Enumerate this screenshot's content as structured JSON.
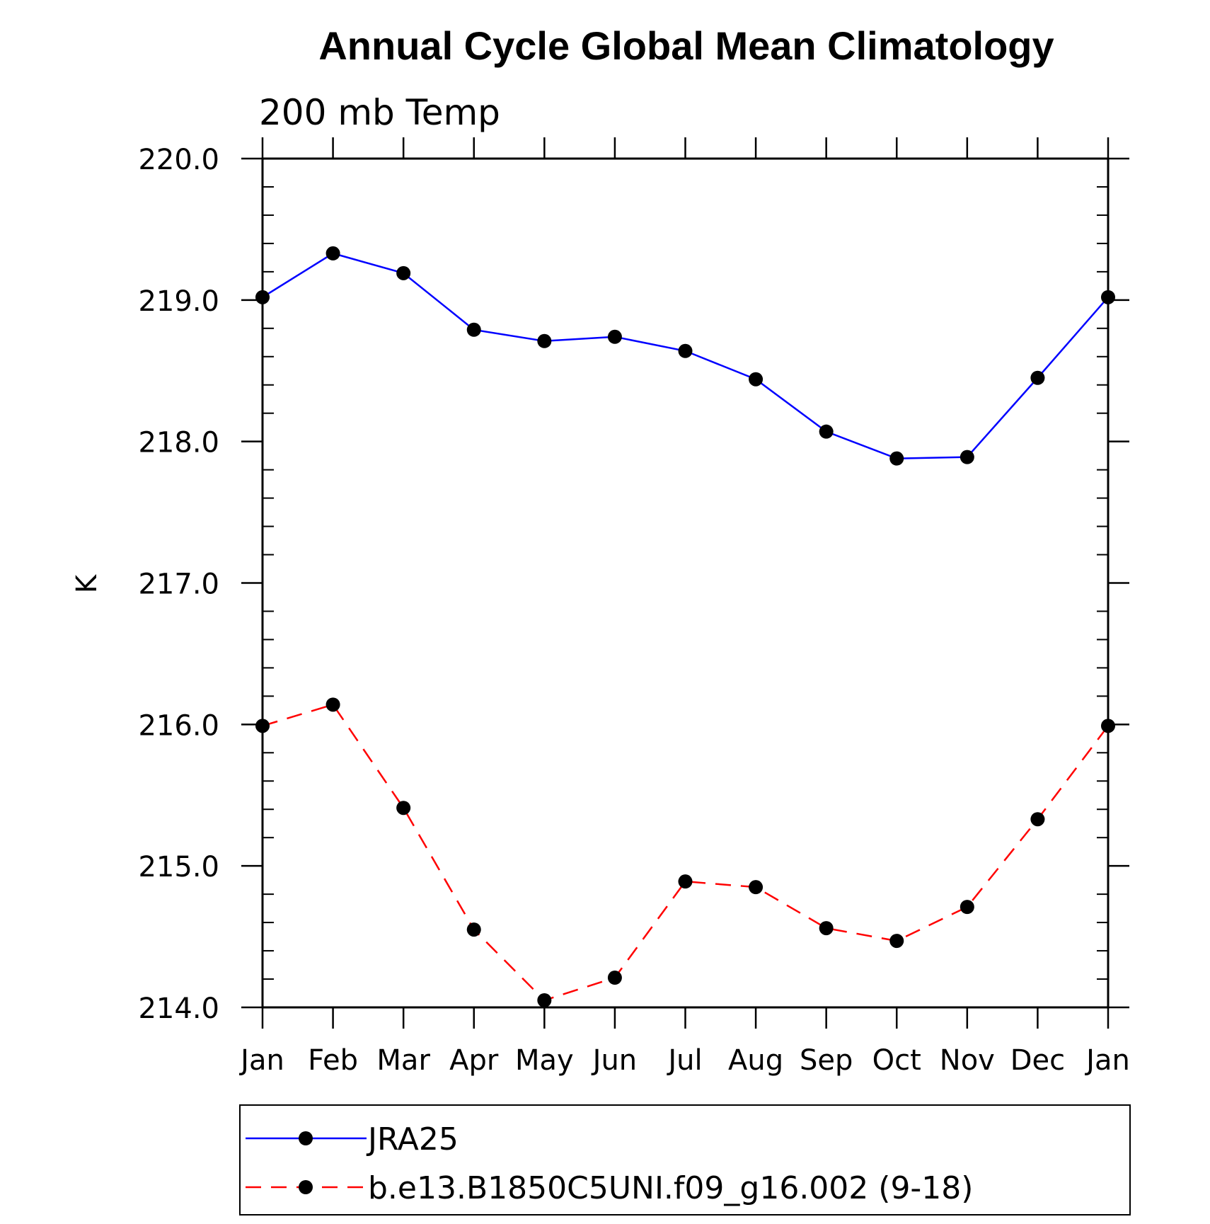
{
  "chart_data": {
    "type": "line",
    "title": "Annual Cycle Global Mean Climatology",
    "subtitle": "200 mb Temp",
    "xlabel": "",
    "ylabel": "K",
    "categories": [
      "Jan",
      "Feb",
      "Mar",
      "Apr",
      "May",
      "Jun",
      "Jul",
      "Aug",
      "Sep",
      "Oct",
      "Nov",
      "Dec",
      "Jan"
    ],
    "ylim": [
      214.0,
      220.0
    ],
    "yticks": [
      "214.0",
      "215.0",
      "216.0",
      "217.0",
      "218.0",
      "219.0",
      "220.0"
    ],
    "grid": false,
    "legend_position": "bottom",
    "series": [
      {
        "name": "JRA25",
        "color": "#0000ff",
        "dash": "solid",
        "marker": "filled-circle",
        "values": [
          219.02,
          219.33,
          219.19,
          218.79,
          218.71,
          218.74,
          218.64,
          218.44,
          218.07,
          217.88,
          217.89,
          218.45,
          219.02
        ]
      },
      {
        "name": "b.e13.B1850C5UNI.f09_g16.002 (9-18)",
        "color": "#ff0000",
        "dash": "dashed",
        "marker": "filled-circle",
        "values": [
          215.99,
          216.14,
          215.41,
          214.55,
          214.05,
          214.21,
          214.89,
          214.85,
          214.56,
          214.47,
          214.71,
          215.33,
          215.99
        ]
      }
    ]
  }
}
